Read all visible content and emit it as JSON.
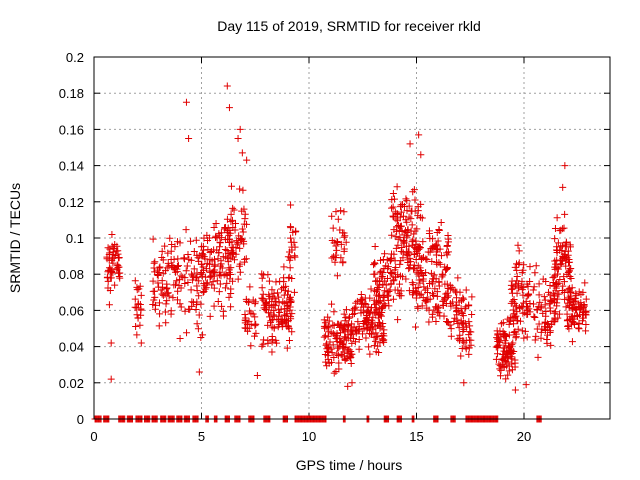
{
  "chart_data": {
    "type": "scatter",
    "title": "Day 115 of 2019, SRMTID for receiver rkld",
    "xlabel": "GPS time / hours",
    "ylabel": "SRMTID / TECUs",
    "xlim": [
      0,
      24
    ],
    "ylim": [
      0,
      0.2
    ],
    "xticks": [
      0,
      5,
      10,
      15,
      20
    ],
    "xtick_labels": [
      "0",
      "5",
      "10",
      "15",
      "20"
    ],
    "yticks": [
      0,
      0.02,
      0.04,
      0.06,
      0.08,
      0.1,
      0.12,
      0.14,
      0.16,
      0.18,
      0.2
    ],
    "ytick_labels": [
      "0",
      "0.02",
      "0.04",
      "0.06",
      "0.08",
      "0.1",
      "0.12",
      "0.14",
      "0.16",
      "0.18",
      "0.2"
    ],
    "grid": true,
    "marker": "+",
    "color": "#e00000",
    "clusters": [
      {
        "x": [
          0.6,
          1.2
        ],
        "y": [
          0.06,
          0.11
        ],
        "n": 55
      },
      {
        "x": [
          1.9,
          2.2
        ],
        "y": [
          0.04,
          0.085
        ],
        "n": 22
      },
      {
        "x": [
          2.7,
          4.0
        ],
        "y": [
          0.045,
          0.11
        ],
        "n": 80
      },
      {
        "x": [
          4.0,
          5.2
        ],
        "y": [
          0.03,
          0.12
        ],
        "n": 60
      },
      {
        "x": [
          5.0,
          6.4
        ],
        "y": [
          0.05,
          0.12
        ],
        "n": 110
      },
      {
        "x": [
          6.2,
          7.1
        ],
        "y": [
          0.06,
          0.14
        ],
        "n": 55
      },
      {
        "x": [
          7.0,
          7.6
        ],
        "y": [
          0.035,
          0.08
        ],
        "n": 30
      },
      {
        "x": [
          7.8,
          9.2
        ],
        "y": [
          0.03,
          0.09
        ],
        "n": 120
      },
      {
        "x": [
          9.0,
          9.4
        ],
        "y": [
          0.05,
          0.13
        ],
        "n": 22
      },
      {
        "x": [
          10.7,
          12.0
        ],
        "y": [
          0.02,
          0.07
        ],
        "n": 120
      },
      {
        "x": [
          11.0,
          11.8
        ],
        "y": [
          0.07,
          0.13
        ],
        "n": 30
      },
      {
        "x": [
          12.0,
          13.5
        ],
        "y": [
          0.03,
          0.08
        ],
        "n": 130
      },
      {
        "x": [
          13.0,
          14.3
        ],
        "y": [
          0.05,
          0.1
        ],
        "n": 70
      },
      {
        "x": [
          13.8,
          15.2
        ],
        "y": [
          0.06,
          0.14
        ],
        "n": 120
      },
      {
        "x": [
          14.8,
          16.5
        ],
        "y": [
          0.04,
          0.12
        ],
        "n": 140
      },
      {
        "x": [
          16.3,
          17.2
        ],
        "y": [
          0.035,
          0.09
        ],
        "n": 50
      },
      {
        "x": [
          17.0,
          17.6
        ],
        "y": [
          0.02,
          0.08
        ],
        "n": 30
      },
      {
        "x": [
          18.7,
          19.6
        ],
        "y": [
          0.015,
          0.06
        ],
        "n": 90
      },
      {
        "x": [
          19.4,
          20.3
        ],
        "y": [
          0.03,
          0.1
        ],
        "n": 80
      },
      {
        "x": [
          20.4,
          21.5
        ],
        "y": [
          0.03,
          0.09
        ],
        "n": 70
      },
      {
        "x": [
          21.4,
          22.2
        ],
        "y": [
          0.05,
          0.12
        ],
        "n": 90
      },
      {
        "x": [
          22.0,
          22.9
        ],
        "y": [
          0.04,
          0.08
        ],
        "n": 80
      }
    ],
    "outliers": [
      {
        "x": 4.3,
        "y": 0.175
      },
      {
        "x": 4.4,
        "y": 0.155
      },
      {
        "x": 6.2,
        "y": 0.184
      },
      {
        "x": 6.3,
        "y": 0.172
      },
      {
        "x": 6.8,
        "y": 0.16
      },
      {
        "x": 6.7,
        "y": 0.155
      },
      {
        "x": 7.1,
        "y": 0.143
      },
      {
        "x": 6.9,
        "y": 0.147
      },
      {
        "x": 14.7,
        "y": 0.152
      },
      {
        "x": 15.1,
        "y": 0.157
      },
      {
        "x": 15.2,
        "y": 0.146
      },
      {
        "x": 21.9,
        "y": 0.14
      },
      {
        "x": 21.8,
        "y": 0.128
      },
      {
        "x": 0.8,
        "y": 0.022
      },
      {
        "x": 0.8,
        "y": 0.042
      },
      {
        "x": 2.2,
        "y": 0.042
      },
      {
        "x": 4.9,
        "y": 0.026
      },
      {
        "x": 7.6,
        "y": 0.024
      },
      {
        "x": 11.8,
        "y": 0.018
      },
      {
        "x": 12.0,
        "y": 0.02
      },
      {
        "x": 19.6,
        "y": 0.016
      },
      {
        "x": 20.1,
        "y": 0.019
      },
      {
        "x": 17.2,
        "y": 0.02
      }
    ],
    "zero_segments": [
      [
        0.05,
        0.35
      ],
      [
        0.45,
        0.7
      ],
      [
        1.15,
        1.45
      ],
      [
        1.55,
        1.8
      ],
      [
        1.95,
        2.25
      ],
      [
        2.35,
        2.6
      ],
      [
        2.7,
        2.95
      ],
      [
        3.1,
        3.35
      ],
      [
        3.45,
        3.75
      ],
      [
        3.85,
        4.1
      ],
      [
        4.2,
        4.45
      ],
      [
        4.6,
        4.85
      ],
      [
        5.2,
        5.35
      ],
      [
        5.6,
        5.75
      ],
      [
        6.1,
        6.3
      ],
      [
        6.55,
        6.8
      ],
      [
        7.2,
        7.45
      ],
      [
        7.9,
        8.2
      ],
      [
        8.8,
        9.0
      ],
      [
        9.35,
        10.8
      ],
      [
        11.6,
        11.7
      ],
      [
        12.7,
        12.8
      ],
      [
        13.5,
        13.7
      ],
      [
        14.1,
        14.3
      ],
      [
        14.8,
        14.9
      ],
      [
        15.8,
        16.0
      ],
      [
        16.6,
        16.8
      ],
      [
        17.3,
        18.8
      ],
      [
        20.6,
        20.8
      ]
    ]
  }
}
